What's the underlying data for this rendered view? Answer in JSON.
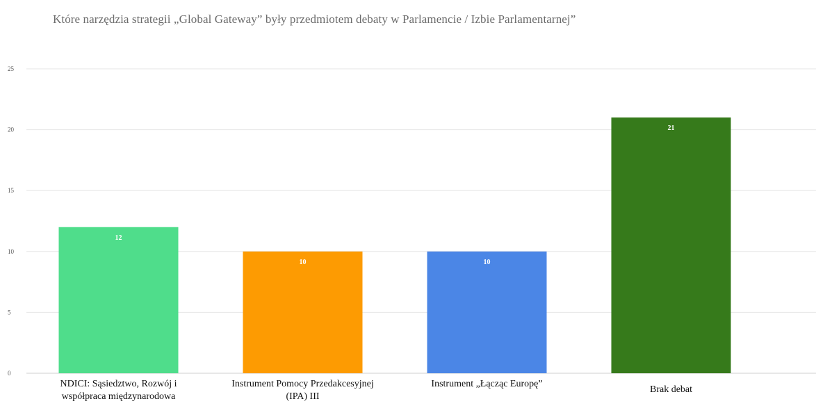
{
  "chart_data": {
    "type": "bar",
    "title": "Które narzędzia strategii „Global Gateway” były przedmiotem debaty w Parlamencie / Izbie Parlamentarnej”",
    "categories": [
      "NDICI: Sąsiedztwo, Rozwój i\nwspółpraca międzynarodowa",
      "Instrument Pomocy Przedakcesyjnej\n(IPA) III",
      "Instrument „Łącząc Europę”",
      "Brak debat"
    ],
    "values": [
      12,
      10,
      10,
      21
    ],
    "value_labels": [
      "12",
      "10",
      "10",
      "21"
    ],
    "colors": [
      "#4fdd8b",
      "#fd9b02",
      "#4b86e6",
      "#367a1b"
    ],
    "ylim": [
      0,
      25
    ],
    "yticks": [
      0,
      5,
      10,
      15,
      20,
      25
    ],
    "ytick_labels": [
      "0",
      "5",
      "10",
      "15",
      "20",
      "25"
    ],
    "xlabel": "",
    "ylabel": "",
    "grid": true,
    "legend": "none"
  }
}
